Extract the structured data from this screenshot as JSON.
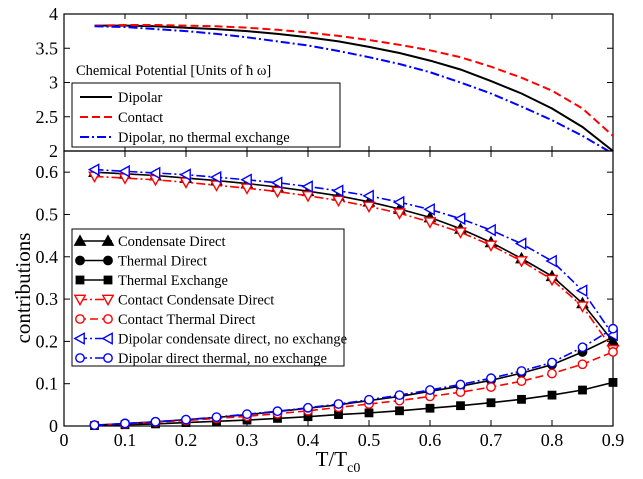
{
  "chart_data": [
    {
      "type": "line",
      "legend_title": "Chemical Potential [Units of  ħ ω]",
      "xlim": [
        0,
        0.9
      ],
      "ylim": [
        2,
        4
      ],
      "yticks": [
        "2",
        "2.5",
        "3",
        "3.5",
        "4"
      ],
      "legend_position": "lower-left",
      "grid": false,
      "series": [
        {
          "name": "Dipolar",
          "color": "#000000",
          "dash": "solid",
          "x": [
            0.05,
            0.1,
            0.15,
            0.2,
            0.25,
            0.3,
            0.35,
            0.4,
            0.45,
            0.5,
            0.55,
            0.6,
            0.65,
            0.7,
            0.75,
            0.8,
            0.85,
            0.9
          ],
          "y": [
            3.83,
            3.83,
            3.82,
            3.8,
            3.78,
            3.75,
            3.71,
            3.66,
            3.6,
            3.52,
            3.43,
            3.32,
            3.19,
            3.02,
            2.84,
            2.62,
            2.35,
            2.0
          ]
        },
        {
          "name": "Contact",
          "color": "#ff0000",
          "dash": "dashed",
          "x": [
            0.05,
            0.1,
            0.15,
            0.2,
            0.25,
            0.3,
            0.35,
            0.4,
            0.45,
            0.5,
            0.55,
            0.6,
            0.65,
            0.7,
            0.75,
            0.8,
            0.85,
            0.9
          ],
          "y": [
            3.83,
            3.84,
            3.84,
            3.83,
            3.82,
            3.8,
            3.77,
            3.73,
            3.68,
            3.62,
            3.55,
            3.47,
            3.37,
            3.23,
            3.07,
            2.88,
            2.62,
            2.22
          ]
        },
        {
          "name": "Dipolar, no thermal exchange",
          "color": "#0000ff",
          "dash": "dashdot",
          "x": [
            0.05,
            0.1,
            0.15,
            0.2,
            0.25,
            0.3,
            0.35,
            0.4,
            0.45,
            0.5,
            0.55,
            0.6,
            0.65,
            0.7,
            0.75,
            0.8,
            0.85,
            0.9
          ],
          "y": [
            3.82,
            3.81,
            3.78,
            3.75,
            3.71,
            3.66,
            3.6,
            3.54,
            3.46,
            3.37,
            3.27,
            3.15,
            3.0,
            2.84,
            2.65,
            2.45,
            2.22,
            1.96
          ]
        }
      ]
    },
    {
      "type": "line",
      "xlabel_main": "T/T",
      "xlabel_sub": "c0",
      "ylabel": "contributions",
      "xlim": [
        0,
        0.9
      ],
      "ylim": [
        0,
        0.65
      ],
      "xticks": [
        "0",
        "0.1",
        "0.2",
        "0.3",
        "0.4",
        "0.5",
        "0.6",
        "0.7",
        "0.8",
        "0.9"
      ],
      "yticks": [
        "0",
        "0.1",
        "0.2",
        "0.3",
        "0.4",
        "0.5",
        "0.6"
      ],
      "legend_position": "center-left",
      "grid": false,
      "series": [
        {
          "name": "Condensate Direct",
          "color": "#000000",
          "dash": "solid",
          "marker": "triangle-up-filled",
          "x": [
            0.05,
            0.1,
            0.15,
            0.2,
            0.25,
            0.3,
            0.35,
            0.4,
            0.45,
            0.5,
            0.55,
            0.6,
            0.65,
            0.7,
            0.75,
            0.8,
            0.85,
            0.9
          ],
          "y": [
            0.6,
            0.596,
            0.592,
            0.586,
            0.58,
            0.573,
            0.565,
            0.555,
            0.544,
            0.53,
            0.513,
            0.493,
            0.466,
            0.434,
            0.396,
            0.354,
            0.29,
            0.2
          ]
        },
        {
          "name": "Thermal Direct",
          "color": "#000000",
          "dash": "solid",
          "marker": "circle-filled",
          "x": [
            0.05,
            0.1,
            0.15,
            0.2,
            0.25,
            0.3,
            0.35,
            0.4,
            0.45,
            0.5,
            0.55,
            0.6,
            0.65,
            0.7,
            0.75,
            0.8,
            0.85,
            0.9
          ],
          "y": [
            0.002,
            0.006,
            0.01,
            0.015,
            0.02,
            0.027,
            0.034,
            0.042,
            0.05,
            0.06,
            0.07,
            0.082,
            0.094,
            0.108,
            0.125,
            0.145,
            0.175,
            0.21
          ]
        },
        {
          "name": "Thermal Exchange",
          "color": "#000000",
          "dash": "solid",
          "marker": "square-filled",
          "x": [
            0.05,
            0.1,
            0.15,
            0.2,
            0.25,
            0.3,
            0.35,
            0.4,
            0.45,
            0.5,
            0.55,
            0.6,
            0.65,
            0.7,
            0.75,
            0.8,
            0.85,
            0.9
          ],
          "y": [
            0.001,
            0.003,
            0.005,
            0.008,
            0.011,
            0.014,
            0.018,
            0.022,
            0.027,
            0.031,
            0.036,
            0.042,
            0.048,
            0.055,
            0.063,
            0.073,
            0.085,
            0.103
          ]
        },
        {
          "name": "Contact Condensate Direct",
          "color": "#ff0000",
          "dash": "dashdot",
          "marker": "triangle-down-open",
          "x": [
            0.05,
            0.1,
            0.15,
            0.2,
            0.25,
            0.3,
            0.35,
            0.4,
            0.45,
            0.5,
            0.55,
            0.6,
            0.65,
            0.7,
            0.75,
            0.8,
            0.85,
            0.9
          ],
          "y": [
            0.59,
            0.586,
            0.582,
            0.576,
            0.569,
            0.562,
            0.554,
            0.544,
            0.533,
            0.519,
            0.503,
            0.482,
            0.458,
            0.427,
            0.39,
            0.346,
            0.283,
            0.18
          ]
        },
        {
          "name": "Contact Thermal Direct",
          "color": "#ff0000",
          "dash": "dashed",
          "marker": "circle-open",
          "x": [
            0.05,
            0.1,
            0.15,
            0.2,
            0.25,
            0.3,
            0.35,
            0.4,
            0.45,
            0.5,
            0.55,
            0.6,
            0.65,
            0.7,
            0.75,
            0.8,
            0.85,
            0.9
          ],
          "y": [
            0.002,
            0.005,
            0.009,
            0.013,
            0.018,
            0.023,
            0.029,
            0.036,
            0.044,
            0.052,
            0.06,
            0.07,
            0.08,
            0.092,
            0.106,
            0.124,
            0.146,
            0.175
          ]
        },
        {
          "name": "Dipolar condensate direct, no exchange",
          "color": "#0000ff",
          "dash": "dashdot",
          "marker": "triangle-left-open",
          "x": [
            0.05,
            0.1,
            0.15,
            0.2,
            0.25,
            0.3,
            0.35,
            0.4,
            0.45,
            0.5,
            0.55,
            0.6,
            0.65,
            0.7,
            0.75,
            0.8,
            0.85,
            0.9
          ],
          "y": [
            0.606,
            0.602,
            0.598,
            0.594,
            0.588,
            0.582,
            0.575,
            0.566,
            0.556,
            0.544,
            0.529,
            0.512,
            0.49,
            0.463,
            0.431,
            0.39,
            0.32,
            0.215
          ]
        },
        {
          "name": "Dipolar direct thermal, no exchange",
          "color": "#0000ff",
          "dash": "dashdot",
          "marker": "circle-open",
          "x": [
            0.05,
            0.1,
            0.15,
            0.2,
            0.25,
            0.3,
            0.35,
            0.4,
            0.45,
            0.5,
            0.55,
            0.6,
            0.65,
            0.7,
            0.75,
            0.8,
            0.85,
            0.9
          ],
          "y": [
            0.002,
            0.006,
            0.01,
            0.015,
            0.021,
            0.028,
            0.035,
            0.043,
            0.052,
            0.062,
            0.073,
            0.085,
            0.098,
            0.113,
            0.13,
            0.15,
            0.186,
            0.23
          ]
        }
      ]
    }
  ]
}
